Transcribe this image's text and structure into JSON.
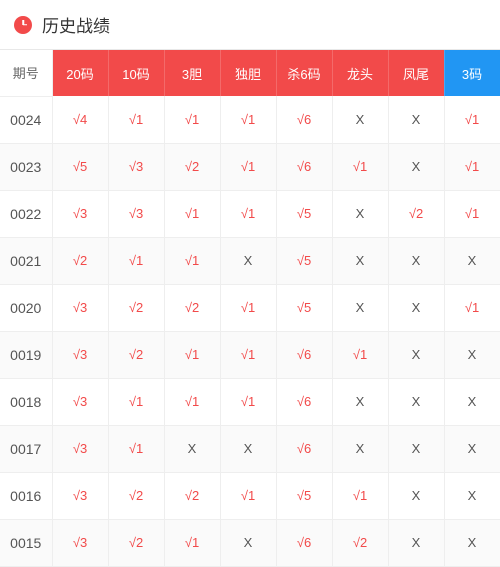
{
  "header": {
    "title": "历史战绩",
    "icon": "clock-icon"
  },
  "colors": {
    "header_red": "#f24a4a",
    "header_blue": "#2196f3",
    "hit_text": "#f24a4a",
    "miss_text": "#555555",
    "row_alt_bg": "#fafafa",
    "border": "#eeeeee",
    "title_text": "#333333"
  },
  "table": {
    "period_col_label": "期号",
    "columns": [
      {
        "label": "20码",
        "style": "red"
      },
      {
        "label": "10码",
        "style": "red"
      },
      {
        "label": "3胆",
        "style": "red"
      },
      {
        "label": "独胆",
        "style": "red"
      },
      {
        "label": "杀6码",
        "style": "red"
      },
      {
        "label": "龙头",
        "style": "red"
      },
      {
        "label": "凤尾",
        "style": "red"
      },
      {
        "label": "3码",
        "style": "blue"
      }
    ],
    "rows": [
      {
        "period": "0024",
        "cells": [
          {
            "v": "√4",
            "h": true
          },
          {
            "v": "√1",
            "h": true
          },
          {
            "v": "√1",
            "h": true
          },
          {
            "v": "√1",
            "h": true
          },
          {
            "v": "√6",
            "h": true
          },
          {
            "v": "X",
            "h": false
          },
          {
            "v": "X",
            "h": false
          },
          {
            "v": "√1",
            "h": true
          }
        ]
      },
      {
        "period": "0023",
        "cells": [
          {
            "v": "√5",
            "h": true
          },
          {
            "v": "√3",
            "h": true
          },
          {
            "v": "√2",
            "h": true
          },
          {
            "v": "√1",
            "h": true
          },
          {
            "v": "√6",
            "h": true
          },
          {
            "v": "√1",
            "h": true
          },
          {
            "v": "X",
            "h": false
          },
          {
            "v": "√1",
            "h": true
          }
        ]
      },
      {
        "period": "0022",
        "cells": [
          {
            "v": "√3",
            "h": true
          },
          {
            "v": "√3",
            "h": true
          },
          {
            "v": "√1",
            "h": true
          },
          {
            "v": "√1",
            "h": true
          },
          {
            "v": "√5",
            "h": true
          },
          {
            "v": "X",
            "h": false
          },
          {
            "v": "√2",
            "h": true
          },
          {
            "v": "√1",
            "h": true
          }
        ]
      },
      {
        "period": "0021",
        "cells": [
          {
            "v": "√2",
            "h": true
          },
          {
            "v": "√1",
            "h": true
          },
          {
            "v": "√1",
            "h": true
          },
          {
            "v": "X",
            "h": false
          },
          {
            "v": "√5",
            "h": true
          },
          {
            "v": "X",
            "h": false
          },
          {
            "v": "X",
            "h": false
          },
          {
            "v": "X",
            "h": false
          }
        ]
      },
      {
        "period": "0020",
        "cells": [
          {
            "v": "√3",
            "h": true
          },
          {
            "v": "√2",
            "h": true
          },
          {
            "v": "√2",
            "h": true
          },
          {
            "v": "√1",
            "h": true
          },
          {
            "v": "√5",
            "h": true
          },
          {
            "v": "X",
            "h": false
          },
          {
            "v": "X",
            "h": false
          },
          {
            "v": "√1",
            "h": true
          }
        ]
      },
      {
        "period": "0019",
        "cells": [
          {
            "v": "√3",
            "h": true
          },
          {
            "v": "√2",
            "h": true
          },
          {
            "v": "√1",
            "h": true
          },
          {
            "v": "√1",
            "h": true
          },
          {
            "v": "√6",
            "h": true
          },
          {
            "v": "√1",
            "h": true
          },
          {
            "v": "X",
            "h": false
          },
          {
            "v": "X",
            "h": false
          }
        ]
      },
      {
        "period": "0018",
        "cells": [
          {
            "v": "√3",
            "h": true
          },
          {
            "v": "√1",
            "h": true
          },
          {
            "v": "√1",
            "h": true
          },
          {
            "v": "√1",
            "h": true
          },
          {
            "v": "√6",
            "h": true
          },
          {
            "v": "X",
            "h": false
          },
          {
            "v": "X",
            "h": false
          },
          {
            "v": "X",
            "h": false
          }
        ]
      },
      {
        "period": "0017",
        "cells": [
          {
            "v": "√3",
            "h": true
          },
          {
            "v": "√1",
            "h": true
          },
          {
            "v": "X",
            "h": false
          },
          {
            "v": "X",
            "h": false
          },
          {
            "v": "√6",
            "h": true
          },
          {
            "v": "X",
            "h": false
          },
          {
            "v": "X",
            "h": false
          },
          {
            "v": "X",
            "h": false
          }
        ]
      },
      {
        "period": "0016",
        "cells": [
          {
            "v": "√3",
            "h": true
          },
          {
            "v": "√2",
            "h": true
          },
          {
            "v": "√2",
            "h": true
          },
          {
            "v": "√1",
            "h": true
          },
          {
            "v": "√5",
            "h": true
          },
          {
            "v": "√1",
            "h": true
          },
          {
            "v": "X",
            "h": false
          },
          {
            "v": "X",
            "h": false
          }
        ]
      },
      {
        "period": "0015",
        "cells": [
          {
            "v": "√3",
            "h": true
          },
          {
            "v": "√2",
            "h": true
          },
          {
            "v": "√1",
            "h": true
          },
          {
            "v": "X",
            "h": false
          },
          {
            "v": "√6",
            "h": true
          },
          {
            "v": "√2",
            "h": true
          },
          {
            "v": "X",
            "h": false
          },
          {
            "v": "X",
            "h": false
          }
        ]
      }
    ]
  }
}
